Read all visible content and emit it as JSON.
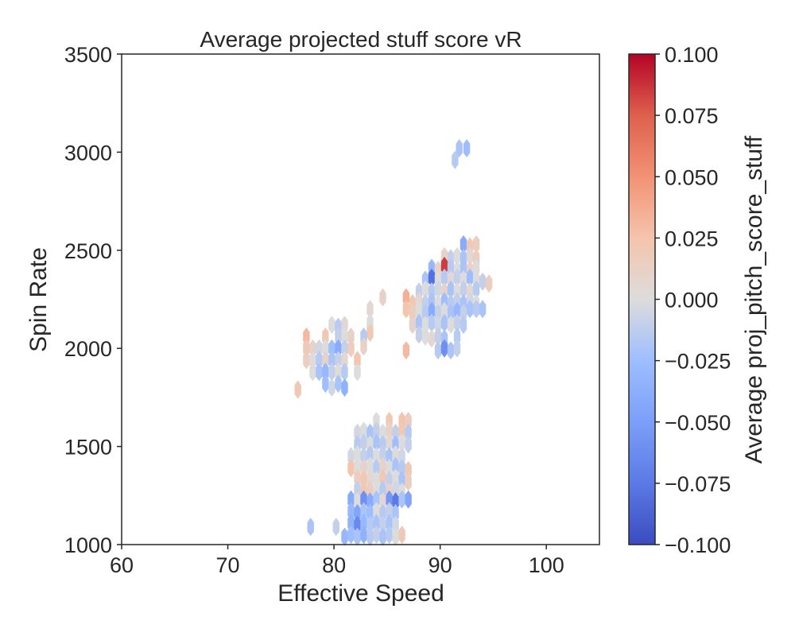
{
  "chart_data": {
    "type": "hexbin",
    "title": "Average projected stuff score vR",
    "xlabel": "Effective Speed",
    "ylabel": "Spin Rate",
    "xlim": [
      60,
      105
    ],
    "ylim": [
      1000,
      3500
    ],
    "xticks": [
      60,
      70,
      80,
      90,
      100
    ],
    "yticks": [
      1000,
      1500,
      2000,
      2500,
      3000,
      3500
    ],
    "grid": false,
    "colorbar": {
      "label": "Average proj_pitch_score_stuff",
      "colormap": "coolwarm",
      "range": [
        -0.1,
        0.1
      ],
      "ticks": [
        "0.100",
        "0.075",
        "0.050",
        "0.025",
        "0.000",
        "−0.025",
        "−0.050",
        "−0.075",
        "−0.100"
      ],
      "tick_values": [
        0.1,
        0.075,
        0.05,
        0.025,
        0.0,
        -0.025,
        -0.05,
        -0.075,
        -0.1
      ]
    },
    "points": [
      {
        "x": 91.8,
        "y": 3020,
        "v": -0.02
      },
      {
        "x": 92.5,
        "y": 3020,
        "v": -0.025
      },
      {
        "x": 91.4,
        "y": 2960,
        "v": -0.015
      },
      {
        "x": 92.2,
        "y": 2530,
        "v": -0.04
      },
      {
        "x": 92.8,
        "y": 2520,
        "v": 0.02
      },
      {
        "x": 93.4,
        "y": 2530,
        "v": 0.015
      },
      {
        "x": 90.4,
        "y": 2470,
        "v": 0.01
      },
      {
        "x": 91.0,
        "y": 2460,
        "v": -0.01
      },
      {
        "x": 91.6,
        "y": 2470,
        "v": 0.0
      },
      {
        "x": 92.2,
        "y": 2460,
        "v": -0.02
      },
      {
        "x": 92.8,
        "y": 2470,
        "v": 0.005
      },
      {
        "x": 93.4,
        "y": 2460,
        "v": 0.015
      },
      {
        "x": 89.2,
        "y": 2410,
        "v": -0.03
      },
      {
        "x": 89.8,
        "y": 2400,
        "v": 0.01
      },
      {
        "x": 90.4,
        "y": 2420,
        "v": 0.085
      },
      {
        "x": 91.0,
        "y": 2410,
        "v": -0.015
      },
      {
        "x": 91.6,
        "y": 2400,
        "v": 0.0
      },
      {
        "x": 92.2,
        "y": 2410,
        "v": -0.02
      },
      {
        "x": 92.8,
        "y": 2400,
        "v": 0.01
      },
      {
        "x": 93.4,
        "y": 2410,
        "v": 0.0
      },
      {
        "x": 88.6,
        "y": 2350,
        "v": -0.02
      },
      {
        "x": 89.2,
        "y": 2360,
        "v": -0.08
      },
      {
        "x": 89.8,
        "y": 2350,
        "v": 0.0
      },
      {
        "x": 90.4,
        "y": 2360,
        "v": -0.015
      },
      {
        "x": 91.0,
        "y": 2350,
        "v": 0.005
      },
      {
        "x": 91.6,
        "y": 2360,
        "v": -0.01
      },
      {
        "x": 92.2,
        "y": 2350,
        "v": 0.0
      },
      {
        "x": 92.8,
        "y": 2360,
        "v": -0.025
      },
      {
        "x": 93.4,
        "y": 2350,
        "v": 0.0
      },
      {
        "x": 94.0,
        "y": 2340,
        "v": -0.01
      },
      {
        "x": 88.0,
        "y": 2290,
        "v": -0.01
      },
      {
        "x": 88.6,
        "y": 2300,
        "v": 0.0
      },
      {
        "x": 89.2,
        "y": 2290,
        "v": -0.015
      },
      {
        "x": 89.8,
        "y": 2300,
        "v": -0.005
      },
      {
        "x": 90.4,
        "y": 2290,
        "v": 0.01
      },
      {
        "x": 91.0,
        "y": 2300,
        "v": -0.02
      },
      {
        "x": 91.6,
        "y": 2290,
        "v": 0.0
      },
      {
        "x": 92.2,
        "y": 2300,
        "v": -0.01
      },
      {
        "x": 92.8,
        "y": 2290,
        "v": 0.005
      },
      {
        "x": 93.4,
        "y": 2300,
        "v": -0.015
      },
      {
        "x": 94.6,
        "y": 2330,
        "v": 0.015
      },
      {
        "x": 86.8,
        "y": 2260,
        "v": 0.035
      },
      {
        "x": 87.4,
        "y": 2230,
        "v": 0.02
      },
      {
        "x": 88.0,
        "y": 2240,
        "v": 0.005
      },
      {
        "x": 88.6,
        "y": 2230,
        "v": -0.01
      },
      {
        "x": 89.2,
        "y": 2240,
        "v": -0.02
      },
      {
        "x": 89.8,
        "y": 2230,
        "v": 0.0
      },
      {
        "x": 90.4,
        "y": 2240,
        "v": -0.025
      },
      {
        "x": 91.0,
        "y": 2230,
        "v": -0.015
      },
      {
        "x": 91.6,
        "y": 2240,
        "v": -0.01
      },
      {
        "x": 92.2,
        "y": 2230,
        "v": -0.02
      },
      {
        "x": 92.8,
        "y": 2240,
        "v": -0.005
      },
      {
        "x": 93.4,
        "y": 2230,
        "v": 0.0
      },
      {
        "x": 86.8,
        "y": 2200,
        "v": 0.025
      },
      {
        "x": 87.4,
        "y": 2180,
        "v": 0.015
      },
      {
        "x": 88.0,
        "y": 2190,
        "v": 0.0
      },
      {
        "x": 88.6,
        "y": 2180,
        "v": -0.015
      },
      {
        "x": 89.2,
        "y": 2190,
        "v": -0.04
      },
      {
        "x": 89.8,
        "y": 2180,
        "v": -0.01
      },
      {
        "x": 90.4,
        "y": 2190,
        "v": 0.0
      },
      {
        "x": 91.0,
        "y": 2180,
        "v": -0.02
      },
      {
        "x": 91.6,
        "y": 2190,
        "v": -0.03
      },
      {
        "x": 92.2,
        "y": 2180,
        "v": -0.01
      },
      {
        "x": 92.8,
        "y": 2200,
        "v": -0.02
      },
      {
        "x": 93.4,
        "y": 2200,
        "v": -0.015
      },
      {
        "x": 94.0,
        "y": 2200,
        "v": -0.02
      },
      {
        "x": 87.4,
        "y": 2120,
        "v": 0.01
      },
      {
        "x": 88.0,
        "y": 2130,
        "v": -0.02
      },
      {
        "x": 88.6,
        "y": 2120,
        "v": 0.0
      },
      {
        "x": 89.2,
        "y": 2130,
        "v": -0.015
      },
      {
        "x": 89.8,
        "y": 2120,
        "v": -0.005
      },
      {
        "x": 90.4,
        "y": 2130,
        "v": -0.02
      },
      {
        "x": 91.0,
        "y": 2120,
        "v": 0.0
      },
      {
        "x": 91.6,
        "y": 2130,
        "v": -0.01
      },
      {
        "x": 92.2,
        "y": 2120,
        "v": -0.015
      },
      {
        "x": 88.0,
        "y": 2070,
        "v": -0.01
      },
      {
        "x": 88.6,
        "y": 2060,
        "v": 0.0
      },
      {
        "x": 89.2,
        "y": 2050,
        "v": 0.005
      },
      {
        "x": 89.8,
        "y": 2060,
        "v": -0.01
      },
      {
        "x": 90.4,
        "y": 2050,
        "v": -0.02
      },
      {
        "x": 91.6,
        "y": 2060,
        "v": -0.015
      },
      {
        "x": 86.8,
        "y": 1990,
        "v": 0.03
      },
      {
        "x": 89.8,
        "y": 1990,
        "v": -0.015
      },
      {
        "x": 90.4,
        "y": 2000,
        "v": -0.06
      },
      {
        "x": 91.0,
        "y": 1990,
        "v": -0.02
      },
      {
        "x": 91.6,
        "y": 2000,
        "v": -0.01
      },
      {
        "x": 84.6,
        "y": 2260,
        "v": 0.01
      },
      {
        "x": 83.4,
        "y": 2200,
        "v": 0.005
      },
      {
        "x": 83.4,
        "y": 2130,
        "v": 0.0
      },
      {
        "x": 83.4,
        "y": 2080,
        "v": 0.02
      },
      {
        "x": 82.8,
        "y": 2060,
        "v": -0.015
      },
      {
        "x": 82.8,
        "y": 2010,
        "v": 0.01
      },
      {
        "x": 79.8,
        "y": 2120,
        "v": 0.0
      },
      {
        "x": 80.4,
        "y": 2110,
        "v": -0.015
      },
      {
        "x": 81.0,
        "y": 2120,
        "v": 0.005
      },
      {
        "x": 77.4,
        "y": 2060,
        "v": 0.03
      },
      {
        "x": 79.2,
        "y": 2060,
        "v": 0.02
      },
      {
        "x": 80.4,
        "y": 2060,
        "v": -0.01
      },
      {
        "x": 81.0,
        "y": 2060,
        "v": 0.0
      },
      {
        "x": 81.6,
        "y": 2060,
        "v": 0.01
      },
      {
        "x": 77.4,
        "y": 2000,
        "v": 0.02
      },
      {
        "x": 78.0,
        "y": 2000,
        "v": 0.01
      },
      {
        "x": 78.6,
        "y": 2000,
        "v": -0.005
      },
      {
        "x": 79.2,
        "y": 2000,
        "v": 0.0
      },
      {
        "x": 79.8,
        "y": 2000,
        "v": -0.025
      },
      {
        "x": 80.4,
        "y": 2000,
        "v": -0.04
      },
      {
        "x": 81.0,
        "y": 2000,
        "v": -0.01
      },
      {
        "x": 81.6,
        "y": 2000,
        "v": 0.015
      },
      {
        "x": 77.4,
        "y": 1940,
        "v": 0.015
      },
      {
        "x": 78.0,
        "y": 1940,
        "v": 0.0
      },
      {
        "x": 78.6,
        "y": 1940,
        "v": -0.015
      },
      {
        "x": 79.2,
        "y": 1940,
        "v": 0.01
      },
      {
        "x": 79.8,
        "y": 1940,
        "v": -0.02
      },
      {
        "x": 80.4,
        "y": 1940,
        "v": -0.01
      },
      {
        "x": 81.0,
        "y": 1940,
        "v": 0.005
      },
      {
        "x": 82.2,
        "y": 1940,
        "v": 0.025
      },
      {
        "x": 78.0,
        "y": 1880,
        "v": 0.0
      },
      {
        "x": 78.6,
        "y": 1880,
        "v": -0.02
      },
      {
        "x": 79.2,
        "y": 1880,
        "v": -0.03
      },
      {
        "x": 79.8,
        "y": 1880,
        "v": -0.01
      },
      {
        "x": 80.4,
        "y": 1880,
        "v": 0.0
      },
      {
        "x": 81.0,
        "y": 1880,
        "v": -0.015
      },
      {
        "x": 82.2,
        "y": 1880,
        "v": 0.0
      },
      {
        "x": 76.6,
        "y": 1790,
        "v": 0.02
      },
      {
        "x": 79.2,
        "y": 1820,
        "v": -0.025
      },
      {
        "x": 79.8,
        "y": 1800,
        "v": -0.005
      },
      {
        "x": 80.4,
        "y": 1820,
        "v": -0.02
      },
      {
        "x": 81.0,
        "y": 1800,
        "v": -0.035
      },
      {
        "x": 84.0,
        "y": 1630,
        "v": 0.0
      },
      {
        "x": 85.2,
        "y": 1630,
        "v": 0.02
      },
      {
        "x": 86.4,
        "y": 1630,
        "v": 0.025
      },
      {
        "x": 87.0,
        "y": 1630,
        "v": 0.015
      },
      {
        "x": 82.2,
        "y": 1570,
        "v": -0.005
      },
      {
        "x": 82.8,
        "y": 1580,
        "v": 0.0
      },
      {
        "x": 83.4,
        "y": 1570,
        "v": -0.02
      },
      {
        "x": 84.0,
        "y": 1580,
        "v": -0.01
      },
      {
        "x": 84.6,
        "y": 1570,
        "v": 0.0
      },
      {
        "x": 85.2,
        "y": 1580,
        "v": 0.01
      },
      {
        "x": 85.8,
        "y": 1570,
        "v": -0.01
      },
      {
        "x": 86.4,
        "y": 1580,
        "v": 0.02
      },
      {
        "x": 87.0,
        "y": 1570,
        "v": -0.015
      },
      {
        "x": 82.2,
        "y": 1510,
        "v": -0.015
      },
      {
        "x": 82.8,
        "y": 1520,
        "v": -0.01
      },
      {
        "x": 83.4,
        "y": 1510,
        "v": 0.0
      },
      {
        "x": 84.0,
        "y": 1520,
        "v": -0.02
      },
      {
        "x": 84.6,
        "y": 1510,
        "v": -0.015
      },
      {
        "x": 85.2,
        "y": 1520,
        "v": 0.005
      },
      {
        "x": 85.8,
        "y": 1510,
        "v": -0.025
      },
      {
        "x": 86.4,
        "y": 1520,
        "v": 0.0
      },
      {
        "x": 87.0,
        "y": 1510,
        "v": -0.01
      },
      {
        "x": 81.6,
        "y": 1450,
        "v": -0.005
      },
      {
        "x": 82.2,
        "y": 1460,
        "v": 0.0
      },
      {
        "x": 82.8,
        "y": 1450,
        "v": -0.01
      },
      {
        "x": 83.4,
        "y": 1460,
        "v": -0.015
      },
      {
        "x": 84.0,
        "y": 1450,
        "v": 0.0
      },
      {
        "x": 84.6,
        "y": 1460,
        "v": -0.01
      },
      {
        "x": 85.2,
        "y": 1450,
        "v": -0.02
      },
      {
        "x": 85.8,
        "y": 1460,
        "v": 0.0
      },
      {
        "x": 86.4,
        "y": 1450,
        "v": -0.005
      },
      {
        "x": 81.6,
        "y": 1390,
        "v": 0.025
      },
      {
        "x": 82.2,
        "y": 1400,
        "v": 0.0
      },
      {
        "x": 82.8,
        "y": 1390,
        "v": 0.01
      },
      {
        "x": 83.4,
        "y": 1400,
        "v": 0.0
      },
      {
        "x": 84.0,
        "y": 1390,
        "v": -0.015
      },
      {
        "x": 84.6,
        "y": 1400,
        "v": 0.01
      },
      {
        "x": 85.2,
        "y": 1390,
        "v": 0.0
      },
      {
        "x": 85.8,
        "y": 1400,
        "v": -0.02
      },
      {
        "x": 86.4,
        "y": 1390,
        "v": -0.015
      },
      {
        "x": 87.0,
        "y": 1380,
        "v": 0.02
      },
      {
        "x": 82.2,
        "y": 1340,
        "v": 0.015
      },
      {
        "x": 82.8,
        "y": 1330,
        "v": 0.02
      },
      {
        "x": 83.4,
        "y": 1340,
        "v": 0.005
      },
      {
        "x": 84.0,
        "y": 1330,
        "v": 0.0
      },
      {
        "x": 84.6,
        "y": 1340,
        "v": 0.02
      },
      {
        "x": 85.2,
        "y": 1330,
        "v": -0.01
      },
      {
        "x": 85.8,
        "y": 1340,
        "v": 0.0
      },
      {
        "x": 86.4,
        "y": 1330,
        "v": -0.02
      },
      {
        "x": 87.0,
        "y": 1320,
        "v": 0.015
      },
      {
        "x": 82.2,
        "y": 1280,
        "v": -0.01
      },
      {
        "x": 82.8,
        "y": 1270,
        "v": 0.02
      },
      {
        "x": 83.4,
        "y": 1280,
        "v": 0.015
      },
      {
        "x": 84.0,
        "y": 1270,
        "v": 0.0
      },
      {
        "x": 84.6,
        "y": 1280,
        "v": -0.015
      },
      {
        "x": 85.2,
        "y": 1270,
        "v": 0.01
      },
      {
        "x": 85.8,
        "y": 1280,
        "v": -0.005
      },
      {
        "x": 86.4,
        "y": 1270,
        "v": 0.0
      },
      {
        "x": 81.6,
        "y": 1230,
        "v": -0.04
      },
      {
        "x": 82.2,
        "y": 1220,
        "v": 0.0
      },
      {
        "x": 82.8,
        "y": 1230,
        "v": -0.06
      },
      {
        "x": 83.4,
        "y": 1220,
        "v": -0.04
      },
      {
        "x": 84.0,
        "y": 1230,
        "v": -0.02
      },
      {
        "x": 84.6,
        "y": 1220,
        "v": 0.005
      },
      {
        "x": 85.2,
        "y": 1230,
        "v": -0.055
      },
      {
        "x": 85.8,
        "y": 1220,
        "v": -0.075
      },
      {
        "x": 86.4,
        "y": 1230,
        "v": -0.02
      },
      {
        "x": 87.0,
        "y": 1230,
        "v": -0.045
      },
      {
        "x": 81.6,
        "y": 1170,
        "v": -0.03
      },
      {
        "x": 82.2,
        "y": 1160,
        "v": -0.045
      },
      {
        "x": 82.8,
        "y": 1170,
        "v": -0.02
      },
      {
        "x": 83.4,
        "y": 1160,
        "v": -0.025
      },
      {
        "x": 84.0,
        "y": 1170,
        "v": 0.0
      },
      {
        "x": 84.6,
        "y": 1160,
        "v": -0.015
      },
      {
        "x": 85.2,
        "y": 1170,
        "v": -0.01
      },
      {
        "x": 85.8,
        "y": 1160,
        "v": -0.02
      },
      {
        "x": 77.8,
        "y": 1090,
        "v": -0.02
      },
      {
        "x": 80.2,
        "y": 1090,
        "v": -0.01
      },
      {
        "x": 81.6,
        "y": 1110,
        "v": -0.035
      },
      {
        "x": 82.2,
        "y": 1100,
        "v": -0.065
      },
      {
        "x": 82.8,
        "y": 1110,
        "v": -0.03
      },
      {
        "x": 83.4,
        "y": 1100,
        "v": -0.015
      },
      {
        "x": 84.0,
        "y": 1110,
        "v": -0.02
      },
      {
        "x": 84.6,
        "y": 1100,
        "v": -0.01
      },
      {
        "x": 85.2,
        "y": 1110,
        "v": -0.02
      },
      {
        "x": 85.8,
        "y": 1100,
        "v": -0.005
      },
      {
        "x": 81.0,
        "y": 1040,
        "v": -0.03
      },
      {
        "x": 81.6,
        "y": 1050,
        "v": -0.025
      },
      {
        "x": 82.2,
        "y": 1040,
        "v": -0.02
      },
      {
        "x": 82.8,
        "y": 1050,
        "v": -0.035
      },
      {
        "x": 83.4,
        "y": 1040,
        "v": -0.015
      },
      {
        "x": 84.0,
        "y": 1050,
        "v": -0.01
      },
      {
        "x": 84.6,
        "y": 1040,
        "v": -0.02
      },
      {
        "x": 85.2,
        "y": 1050,
        "v": -0.015
      },
      {
        "x": 85.8,
        "y": 1040,
        "v": 0.0
      },
      {
        "x": 86.4,
        "y": 1050,
        "v": 0.02
      }
    ]
  }
}
